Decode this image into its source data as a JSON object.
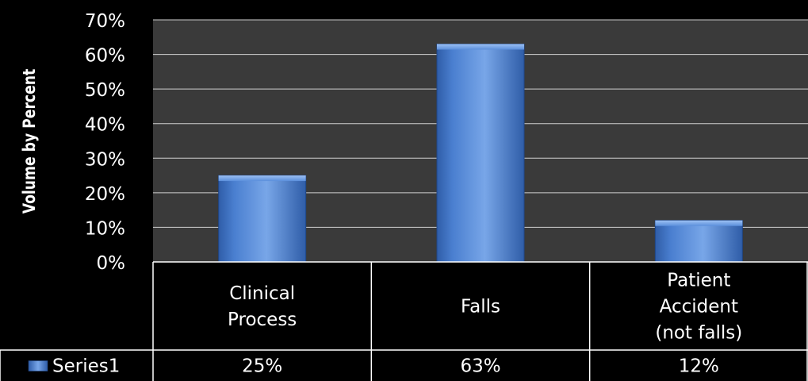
{
  "chart_data": {
    "type": "bar",
    "title": "",
    "xlabel": "",
    "ylabel": "Volume by Percent",
    "categories": [
      [
        "Clinical",
        "Process"
      ],
      [
        "Falls"
      ],
      [
        "Patient",
        "Accident",
        "(not falls)"
      ]
    ],
    "series": [
      {
        "name": "Series1",
        "values": [
          25,
          63,
          12
        ],
        "labels": [
          "25%",
          "63%",
          "12%"
        ]
      }
    ],
    "ylim": [
      0,
      70
    ],
    "y_ticks": [
      0,
      10,
      20,
      30,
      40,
      50,
      60,
      70
    ],
    "y_tick_labels": [
      "0%",
      "10%",
      "20%",
      "30%",
      "40%",
      "50%",
      "60%",
      "70%"
    ],
    "grid": true,
    "legend": "data-table",
    "colors": {
      "background": "#000000",
      "plot_area": "#3a3a3a",
      "grid": "#cfcfcf",
      "bar": "#4a7fd0",
      "bar_dark": "#2f5da8",
      "bar_light": "#78a6e8",
      "text": "#ffffff"
    }
  }
}
